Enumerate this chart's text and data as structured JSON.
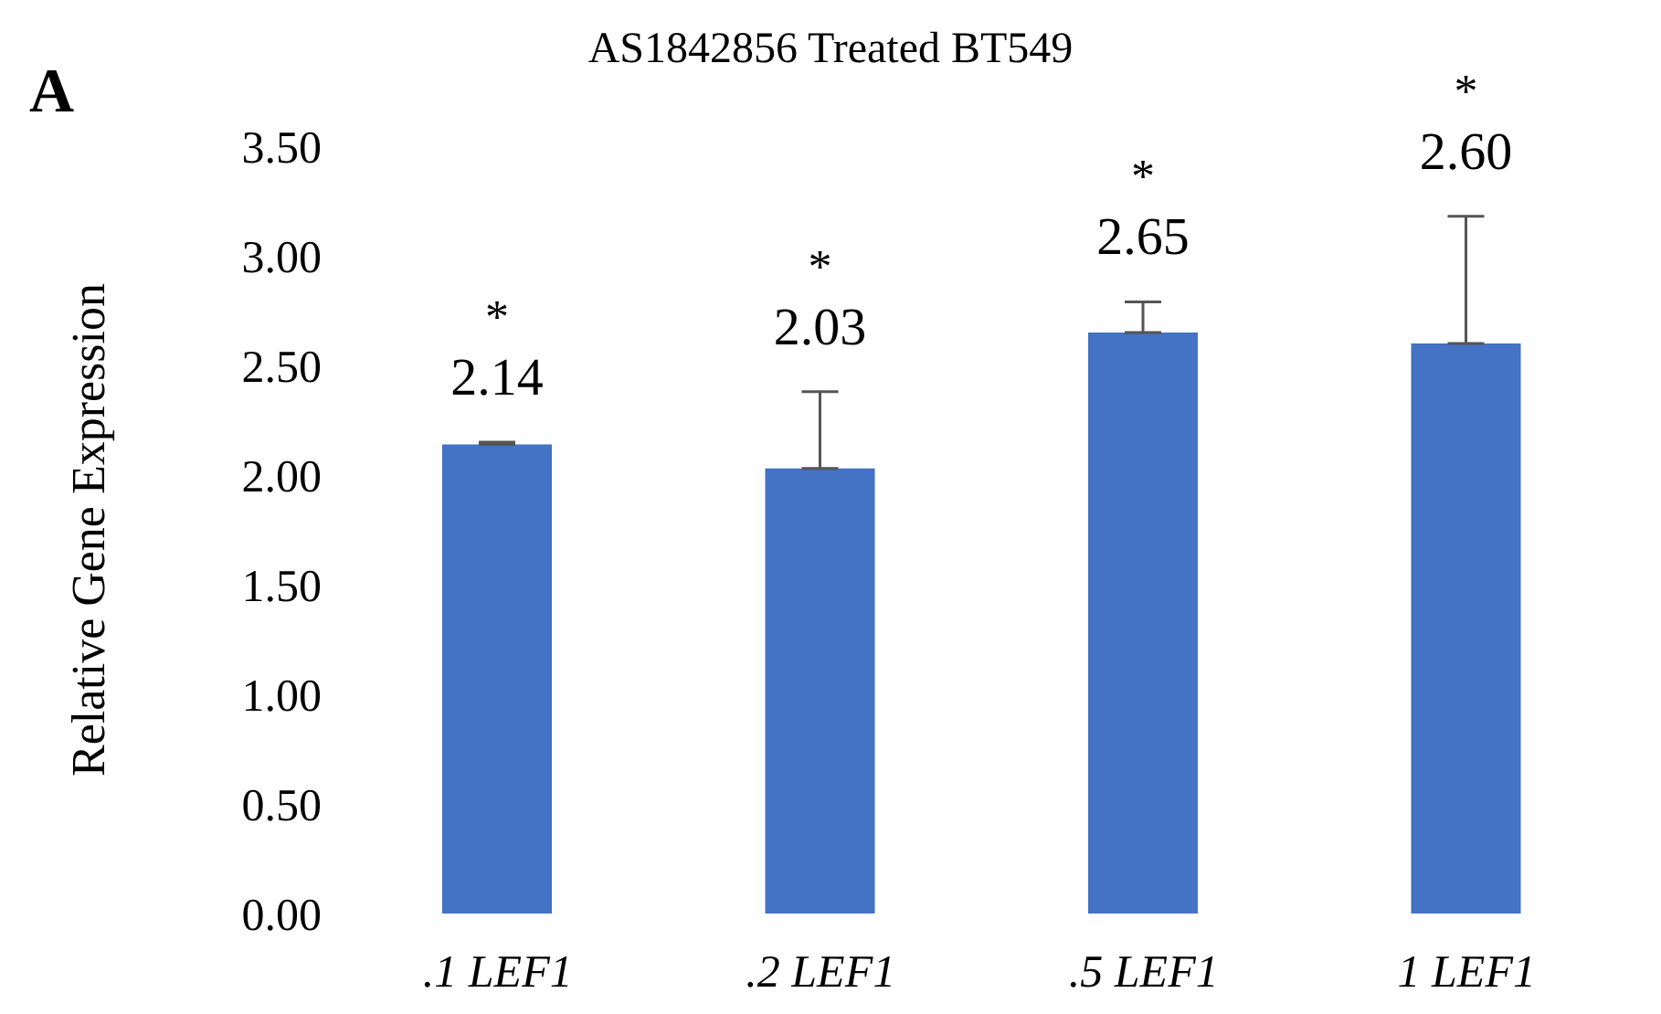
{
  "chart_data": {
    "type": "bar",
    "title": "AS1842856 Treated BT549",
    "ylabel": "Relative  Gene Expression",
    "categories": [
      ".1 LEF1",
      ".2 LEF1",
      ".5 LEF1",
      "1 LEF1"
    ],
    "values": [
      2.14,
      2.03,
      2.65,
      2.6
    ],
    "color": "#4472c4",
    "errors": [
      [
        2.14,
        2.15
      ],
      [
        2.03,
        2.38
      ],
      [
        2.65,
        2.79
      ],
      [
        2.6,
        3.18
      ]
    ],
    "value_labels": [
      "2.14",
      "2.03",
      "2.65",
      "2.60"
    ],
    "ylim": [
      0,
      3.5
    ],
    "yticks": [
      {
        "value": 0,
        "label": "0.00"
      },
      {
        "value": 0.5,
        "label": "0.50"
      },
      {
        "value": 1,
        "label": "1.00"
      },
      {
        "value": 1.5,
        "label": "1.50"
      },
      {
        "value": 2,
        "label": "2.00"
      },
      {
        "value": 2.5,
        "label": "2.50"
      },
      {
        "value": 3,
        "label": "3.00"
      },
      {
        "value": 3.5,
        "label": "3.50"
      }
    ],
    "grid": false,
    "legend": false,
    "annotations": [
      "A",
      "*",
      "*",
      "*",
      "*"
    ]
  }
}
